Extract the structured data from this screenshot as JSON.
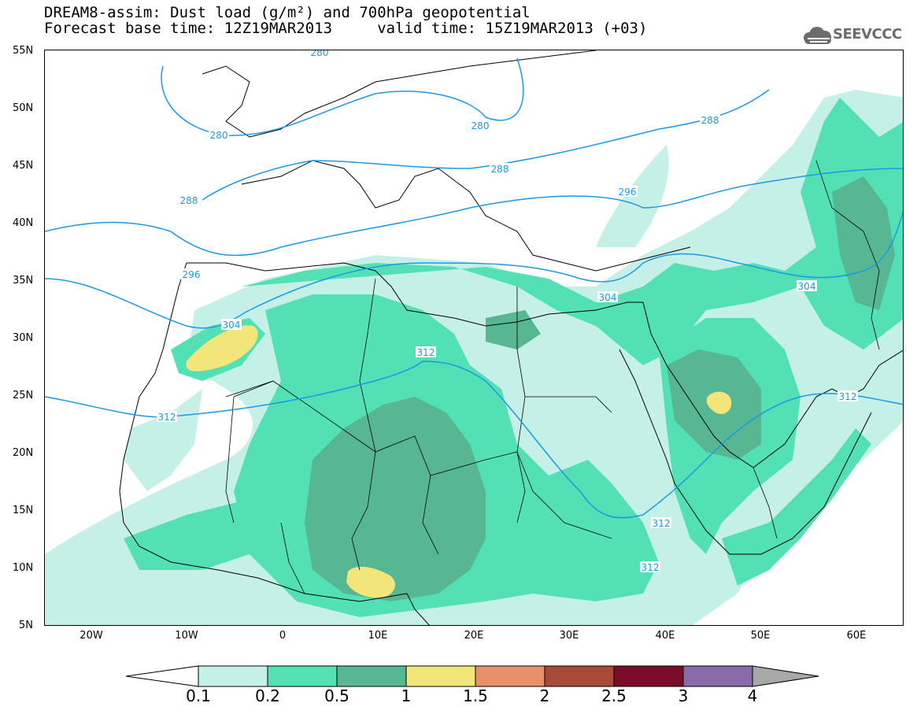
{
  "title_line1": "DREAM8-assim: Dust load (g/m²) and 700hPa geopotential",
  "title_line2": "Forecast base time: 12Z19MAR2013     valid time: 15Z19MAR2013 (+03)",
  "logo_text": "SEEVCCC",
  "lat_labels": [
    "55N",
    "50N",
    "45N",
    "40N",
    "35N",
    "30N",
    "25N",
    "20N",
    "15N",
    "10N",
    "5N"
  ],
  "lon_labels": [
    "20W",
    "10W",
    "0",
    "10E",
    "20E",
    "30E",
    "40E",
    "50E",
    "60E"
  ],
  "contour_labels": [
    "280",
    "280",
    "280",
    "288",
    "288",
    "288",
    "296",
    "296",
    "304",
    "304",
    "304",
    "312",
    "312",
    "312",
    "312",
    "312"
  ],
  "colorbar": {
    "ticks": [
      "0.1",
      "0.2",
      "0.5",
      "1",
      "1.5",
      "2",
      "2.5",
      "3",
      "4"
    ],
    "colors": [
      "#c5f0e8",
      "#52e0b4",
      "#56b792",
      "#f2e57a",
      "#e8906a",
      "#a84a3a",
      "#7a0c2a",
      "#8a6aa8",
      "#a8a8a8"
    ]
  },
  "colors": {
    "contour": "#1a9ae6",
    "coast": "#000000"
  }
}
